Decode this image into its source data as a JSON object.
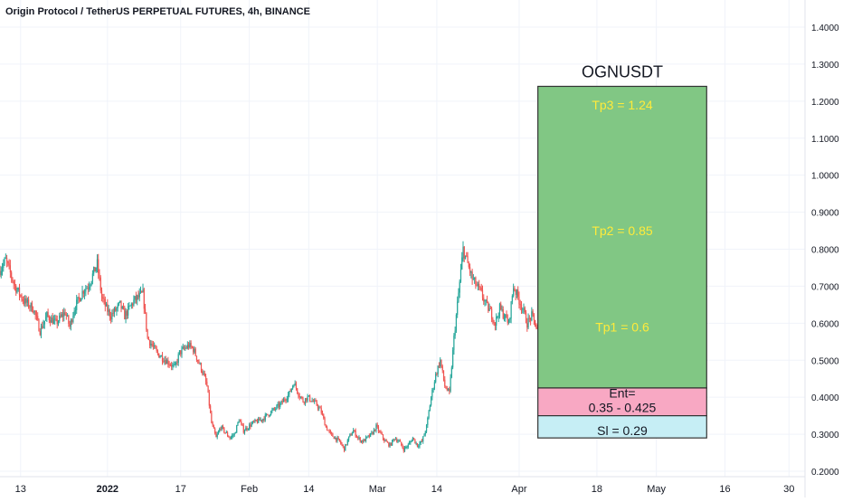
{
  "chart_data": {
    "type": "candlestick",
    "title": "Origin Protocol / TetherUS PERPETUAL FUTURES, 4h, BINANCE",
    "ylim": [
      0.19,
      1.455
    ],
    "y_ticks": [
      "1.4000",
      "1.3000",
      "1.2000",
      "1.1000",
      "1.0000",
      "0.9000",
      "0.8000",
      "0.7000",
      "0.6000",
      "0.5000",
      "0.4000",
      "0.3000",
      "0.2000"
    ],
    "y_tick_values": [
      1.4,
      1.3,
      1.2,
      1.1,
      1.0,
      0.9,
      0.8,
      0.7,
      0.6,
      0.5,
      0.4,
      0.3,
      0.2
    ],
    "x_ticks": [
      {
        "label": "13",
        "day": 0
      },
      {
        "label": "2022",
        "day": 19,
        "bold": true
      },
      {
        "label": "17",
        "day": 35
      },
      {
        "label": "Feb",
        "day": 50
      },
      {
        "label": "14",
        "day": 63
      },
      {
        "label": "Mar",
        "day": 78
      },
      {
        "label": "14",
        "day": 91
      },
      {
        "label": "Apr",
        "day": 109
      },
      {
        "label": "18",
        "day": 126
      },
      {
        "label": "May",
        "day": 139
      },
      {
        "label": "16",
        "day": 154
      },
      {
        "label": "30",
        "day": 168
      }
    ],
    "x_range_days": [
      -4.5,
      171.5
    ],
    "colors": {
      "up": "#26a69a",
      "down": "#ef5350",
      "grid": "#f0f3fa",
      "axis_text": "#131722"
    },
    "series": [
      {
        "symbol": "OGNUSDT",
        "anchors": [
          [
            -4.5,
            0.74
          ],
          [
            -3,
            0.77
          ],
          [
            -1,
            0.7
          ],
          [
            1,
            0.66
          ],
          [
            3,
            0.64
          ],
          [
            4.5,
            0.58
          ],
          [
            6,
            0.62
          ],
          [
            8,
            0.6
          ],
          [
            10,
            0.63
          ],
          [
            11,
            0.59
          ],
          [
            12,
            0.64
          ],
          [
            14,
            0.69
          ],
          [
            15,
            0.7
          ],
          [
            16,
            0.73
          ],
          [
            17,
            0.76
          ],
          [
            18,
            0.67
          ],
          [
            19,
            0.64
          ],
          [
            20,
            0.62
          ],
          [
            22,
            0.65
          ],
          [
            23,
            0.62
          ],
          [
            25,
            0.66
          ],
          [
            27,
            0.68
          ],
          [
            28,
            0.56
          ],
          [
            30,
            0.52
          ],
          [
            32,
            0.5
          ],
          [
            34,
            0.48
          ],
          [
            35,
            0.52
          ],
          [
            37,
            0.54
          ],
          [
            38,
            0.53
          ],
          [
            39,
            0.5
          ],
          [
            40,
            0.47
          ],
          [
            41,
            0.43
          ],
          [
            42,
            0.33
          ],
          [
            43,
            0.29
          ],
          [
            44,
            0.32
          ],
          [
            46,
            0.29
          ],
          [
            47,
            0.3
          ],
          [
            48,
            0.34
          ],
          [
            49,
            0.31
          ],
          [
            51,
            0.33
          ],
          [
            53,
            0.34
          ],
          [
            55,
            0.36
          ],
          [
            57,
            0.38
          ],
          [
            59,
            0.41
          ],
          [
            60,
            0.44
          ],
          [
            61,
            0.41
          ],
          [
            62,
            0.39
          ],
          [
            63,
            0.4
          ],
          [
            64,
            0.39
          ],
          [
            65,
            0.38
          ],
          [
            66,
            0.36
          ],
          [
            67,
            0.32
          ],
          [
            68,
            0.3
          ],
          [
            70,
            0.28
          ],
          [
            71,
            0.26
          ],
          [
            72,
            0.29
          ],
          [
            73,
            0.31
          ],
          [
            74,
            0.29
          ],
          [
            75,
            0.28
          ],
          [
            77,
            0.3
          ],
          [
            78,
            0.32
          ],
          [
            79,
            0.3
          ],
          [
            80,
            0.28
          ],
          [
            81,
            0.27
          ],
          [
            82,
            0.29
          ],
          [
            83,
            0.28
          ],
          [
            84,
            0.26
          ],
          [
            85,
            0.27
          ],
          [
            86,
            0.29
          ],
          [
            87,
            0.27
          ],
          [
            88,
            0.28
          ],
          [
            89,
            0.32
          ],
          [
            90,
            0.4
          ],
          [
            91,
            0.46
          ],
          [
            92,
            0.5
          ],
          [
            93,
            0.43
          ],
          [
            94,
            0.41
          ],
          [
            95,
            0.56
          ],
          [
            96,
            0.68
          ],
          [
            97,
            0.8
          ],
          [
            98,
            0.76
          ],
          [
            99,
            0.72
          ],
          [
            100,
            0.7
          ],
          [
            101,
            0.68
          ],
          [
            102,
            0.65
          ],
          [
            103,
            0.63
          ],
          [
            104,
            0.6
          ],
          [
            105,
            0.64
          ],
          [
            106,
            0.62
          ],
          [
            107,
            0.6
          ],
          [
            108,
            0.7
          ],
          [
            109,
            0.67
          ],
          [
            110,
            0.64
          ],
          [
            111,
            0.6
          ],
          [
            112,
            0.62
          ],
          [
            113,
            0.59
          ],
          [
            114,
            0.55
          ],
          [
            115,
            0.52
          ],
          [
            116,
            0.49
          ],
          [
            117,
            0.5
          ],
          [
            118,
            0.48
          ],
          [
            119,
            0.52
          ],
          [
            120,
            0.61
          ],
          [
            121,
            0.58
          ],
          [
            122,
            0.52
          ],
          [
            123,
            0.47
          ],
          [
            124,
            0.49
          ],
          [
            125,
            0.56
          ]
        ]
      }
    ],
    "position_box": {
      "label": "OGNUSDT",
      "day_start": 113,
      "day_end": 150,
      "zones": [
        {
          "name": "take-profit",
          "from": 0.425,
          "to": 1.24,
          "fill": "#81c784",
          "border": "#333333"
        },
        {
          "name": "entry",
          "from": 0.35,
          "to": 0.425,
          "fill": "#f8a8c3",
          "border": "#333333"
        },
        {
          "name": "stop-loss",
          "from": 0.29,
          "to": 0.35,
          "fill": "#c6eef5",
          "border": "#333333"
        }
      ],
      "labels": [
        {
          "text": "Tp3 = 1.24",
          "price": 1.19,
          "color": "#ffeb3b"
        },
        {
          "text": "Tp2 = 0.85",
          "price": 0.85,
          "color": "#ffeb3b"
        },
        {
          "text": "Tp1 = 0.6",
          "price": 0.59,
          "color": "#ffeb3b"
        },
        {
          "text": "Ent=",
          "price": 0.412,
          "color": "#131722"
        },
        {
          "text": "0.35 - 0.425",
          "price": 0.372,
          "color": "#131722"
        },
        {
          "text": "Sl = 0.29",
          "price": 0.31,
          "color": "#131722"
        }
      ]
    }
  }
}
